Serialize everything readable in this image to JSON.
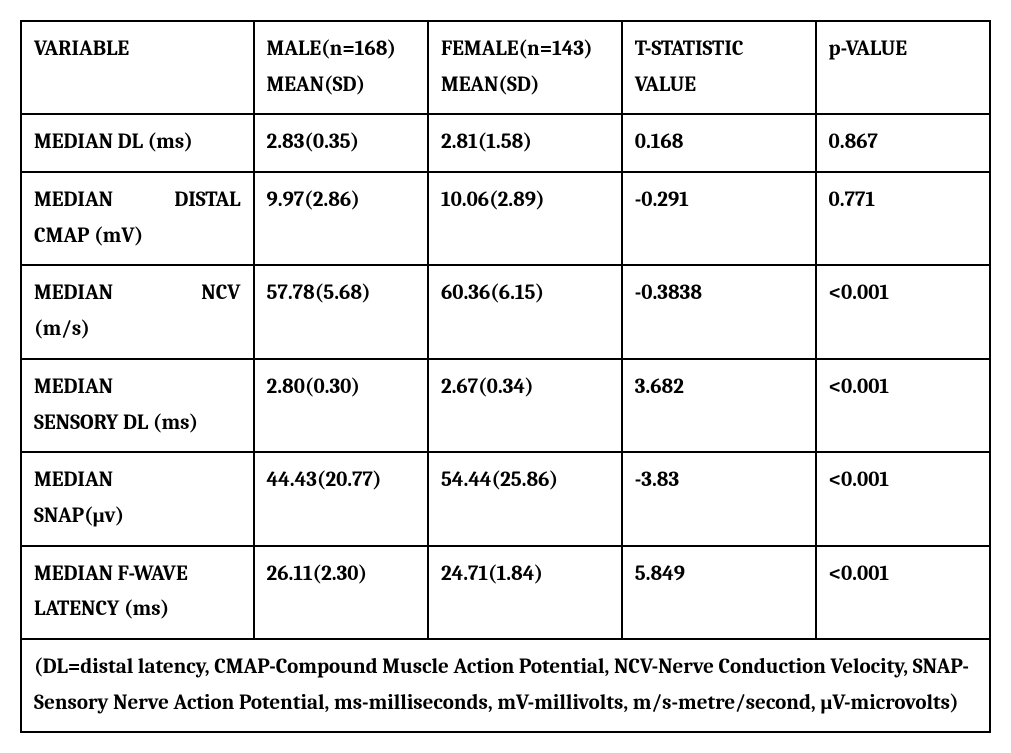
{
  "table": {
    "headers": {
      "variable": "VARIABLE",
      "male_line1": "MALE(n=168)",
      "male_line2": "MEAN(SD)",
      "female_line1": "FEMALE(n=143)",
      "female_line2": "MEAN(SD)",
      "tstat_line1": "T-STATISTIC",
      "tstat_line2": "VALUE",
      "pvalue": "p-VALUE"
    },
    "rows": [
      {
        "variable_l1": "MEDIAN DL (ms)",
        "variable_l2": "",
        "male": "2.83(0.35)",
        "female": "2.81(1.58)",
        "tstat": "0.168",
        "pvalue": "0.867"
      },
      {
        "variable_l1": "MEDIAN",
        "variable_mid": "DISTAL",
        "variable_l2": "CMAP (mV)",
        "justify": true,
        "male": "9.97(2.86)",
        "female": "10.06(2.89)",
        "tstat": "-0.291",
        "pvalue": "0.771"
      },
      {
        "variable_l1": "MEDIAN",
        "variable_mid": "NCV",
        "variable_l2": "(m/s)",
        "justify": true,
        "male": "57.78(5.68)",
        "female": "60.36(6.15)",
        "tstat": "-0.3838",
        "pvalue": "<0.001"
      },
      {
        "variable_l1": "MEDIAN",
        "variable_l2": "SENSORY DL (ms)",
        "male": "2.80(0.30)",
        "female": "2.67(0.34)",
        "tstat": "3.682",
        "pvalue": "<0.001"
      },
      {
        "variable_l1": "MEDIAN",
        "variable_l2": "SNAP(μv)",
        "male": "44.43(20.77)",
        "female": "54.44(25.86)",
        "tstat": "-3.83",
        "pvalue": "<0.001"
      },
      {
        "variable_l1": "MEDIAN F-WAVE",
        "variable_l2": "LATENCY (ms)",
        "male": "26.11(2.30)",
        "female": "24.71(1.84)",
        "tstat": "5.849",
        "pvalue": "<0.001"
      }
    ],
    "caption": "(DL=distal latency, CMAP-Compound Muscle Action Potential, NCV-Nerve Conduction Velocity, SNAP-Sensory Nerve Action Potential, ms-milliseconds, mV-millivolts, m/s-metre/second, μV-microvolts)"
  },
  "colors": {
    "border": "#000000",
    "background": "#ffffff",
    "text": "#000000"
  }
}
